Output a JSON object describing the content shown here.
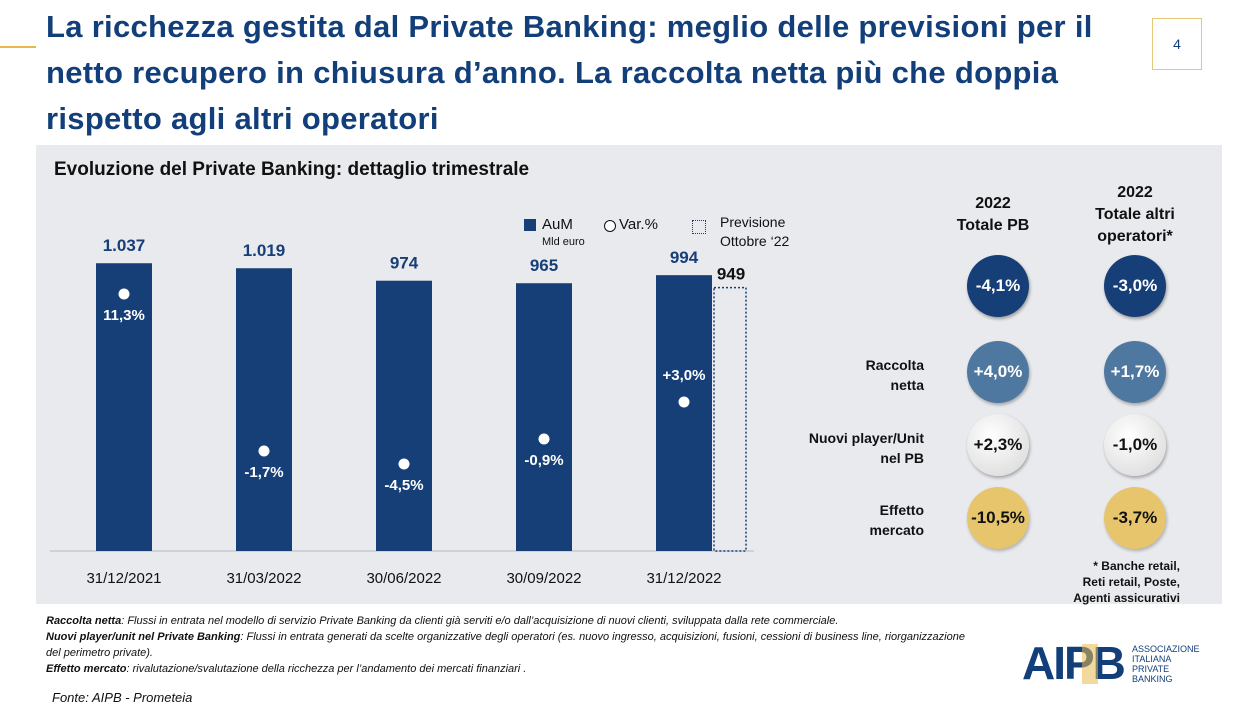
{
  "page": {
    "title": "La ricchezza gestita dal Private Banking: meglio delle previsioni per il netto recupero in chiusura d’anno. La raccolta netta più che doppia rispetto agli altri operatori",
    "page_number": "4"
  },
  "chart_data": {
    "type": "bar",
    "title": "Evoluzione del Private Banking: dettaglio trimestrale",
    "categories": [
      "31/12/2021",
      "31/03/2022",
      "30/06/2022",
      "30/09/2022",
      "31/12/2022"
    ],
    "series": [
      {
        "name": "AuM",
        "values": [
          1037,
          1019,
          974,
          965,
          994
        ],
        "labels": [
          "1.037",
          "1.019",
          "974",
          "965",
          "994"
        ]
      },
      {
        "name": "Var.%",
        "values": [
          11.3,
          -1.7,
          -4.5,
          -0.9,
          3.0
        ],
        "labels": [
          "11,3%",
          "-1,7%",
          "-4,5%",
          "-0,9%",
          "+3,0%"
        ]
      },
      {
        "name": "Previsione Ottobre ‘22",
        "x": "31/12/2022",
        "value": 949,
        "label": "949"
      }
    ],
    "ylim": [
      0,
      1100
    ],
    "legend": {
      "aum": "AuM",
      "aum_unit": "Mld euro",
      "var": "Var.%",
      "forecast_line1": "Previsione",
      "forecast_line2": "Ottobre ‘22"
    },
    "colors": {
      "bar": "#173f77",
      "forecast_border": "#173f77",
      "marker": "#ffffff"
    }
  },
  "table": {
    "headers": {
      "pb_line1": "2022",
      "pb_line2": "Totale PB",
      "others_line1": "2022",
      "others_line2": "Totale altri",
      "others_line3": "operatori*"
    },
    "total": {
      "pb": "-4,1%",
      "others": "-3,0%"
    },
    "rows": [
      {
        "label_line1": "Raccolta",
        "label_line2": "netta",
        "pb": "+4,0%",
        "others": "+1,7%"
      },
      {
        "label_line1": "Nuovi player/Unit",
        "label_line2": "nel PB",
        "pb": "+2,3%",
        "others": "-1,0%"
      },
      {
        "label_line1": "Effetto",
        "label_line2": "mercato",
        "pb": "-10,5%",
        "others": "-3,7%"
      }
    ],
    "note_lines": [
      "* Banche retail,",
      "Reti retail, Poste,",
      "Agenti assicurativi"
    ]
  },
  "footnotes": {
    "raccolta_label": "Raccolta netta",
    "raccolta_text": ": Flussi in entrata nel modello di servizio Private Banking da clienti già serviti e/o dall’acquisizione di nuovi clienti, sviluppata dalla rete commerciale.",
    "nuovi_label": "Nuovi player/unit nel Private Banking",
    "nuovi_text": ": Flussi in entrata generati da scelte organizzative degli operatori (es. nuovo ingresso, acquisizioni, fusioni, cessioni di business line, riorganizzazione del perimetro private).",
    "effetto_label": "Effetto mercato",
    "effetto_text": ": rivalutazione/svalutazione della ricchezza per l’andamento dei mercati finanziari ."
  },
  "source": "Fonte: AIPB - Prometeia",
  "logo": {
    "mark": "AIPB",
    "line1": "ASSOCIAZIONE",
    "line2": "ITALIANA",
    "line3": "PRIVATE",
    "line4": "BANKING"
  }
}
